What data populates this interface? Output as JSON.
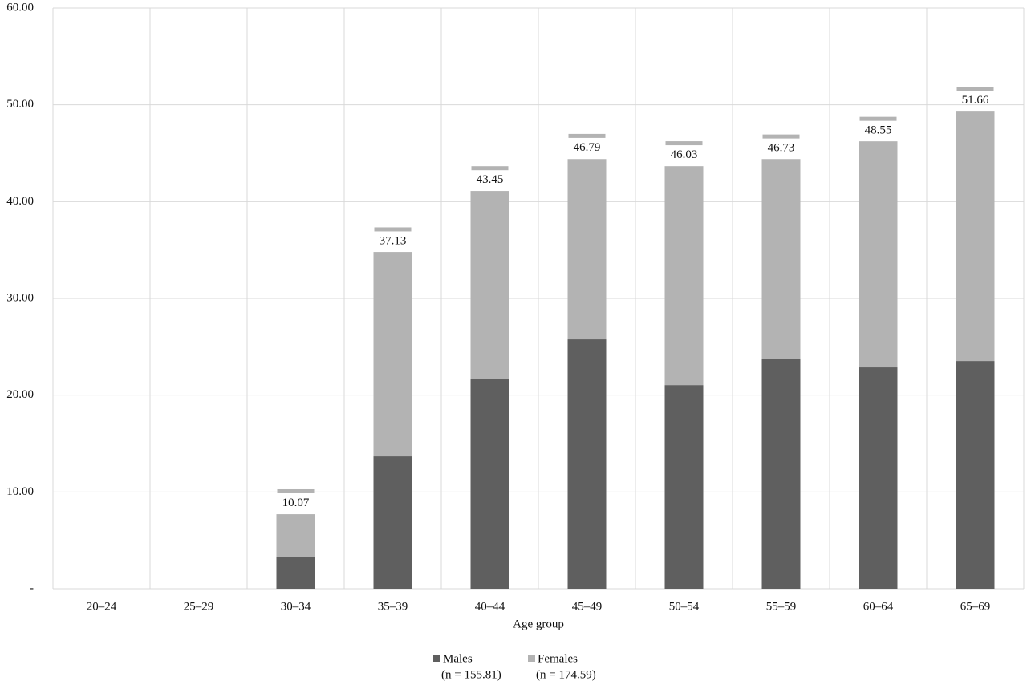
{
  "chart_data": {
    "type": "stacked_bar",
    "x_label": "Age group",
    "categories": [
      "20–24",
      "25–29",
      "30–34",
      "35–39",
      "40–44",
      "45–49",
      "50–54",
      "55–59",
      "60–64",
      "65–69"
    ],
    "series": [
      {
        "name": "Males",
        "n_label": "(n = 155.81)",
        "color": "#5f5f5f",
        "values": [
          null,
          null,
          3.31,
          13.67,
          21.7,
          25.77,
          21.04,
          23.78,
          22.87,
          23.53
        ]
      },
      {
        "name": "Females",
        "n_label": "(n = 174.59)",
        "color": "#b3b3b3",
        "values": [
          null,
          null,
          4.39,
          21.13,
          19.4,
          18.63,
          22.62,
          20.62,
          23.36,
          25.77
        ]
      }
    ],
    "totals": {
      "color": "#b3b3b3",
      "values": [
        null,
        null,
        10.07,
        37.13,
        43.45,
        46.79,
        46.03,
        46.73,
        48.55,
        51.66
      ]
    },
    "ylim": [
      0,
      60
    ],
    "yticks": [
      {
        "value": 0,
        "label": "-"
      },
      {
        "value": 10,
        "label": "10.00"
      },
      {
        "value": 20,
        "label": "20.00"
      },
      {
        "value": 30,
        "label": "30.00"
      },
      {
        "value": 40,
        "label": "40.00"
      },
      {
        "value": 50,
        "label": "50.00"
      },
      {
        "value": 60,
        "label": "60.00"
      }
    ],
    "grid": true
  }
}
